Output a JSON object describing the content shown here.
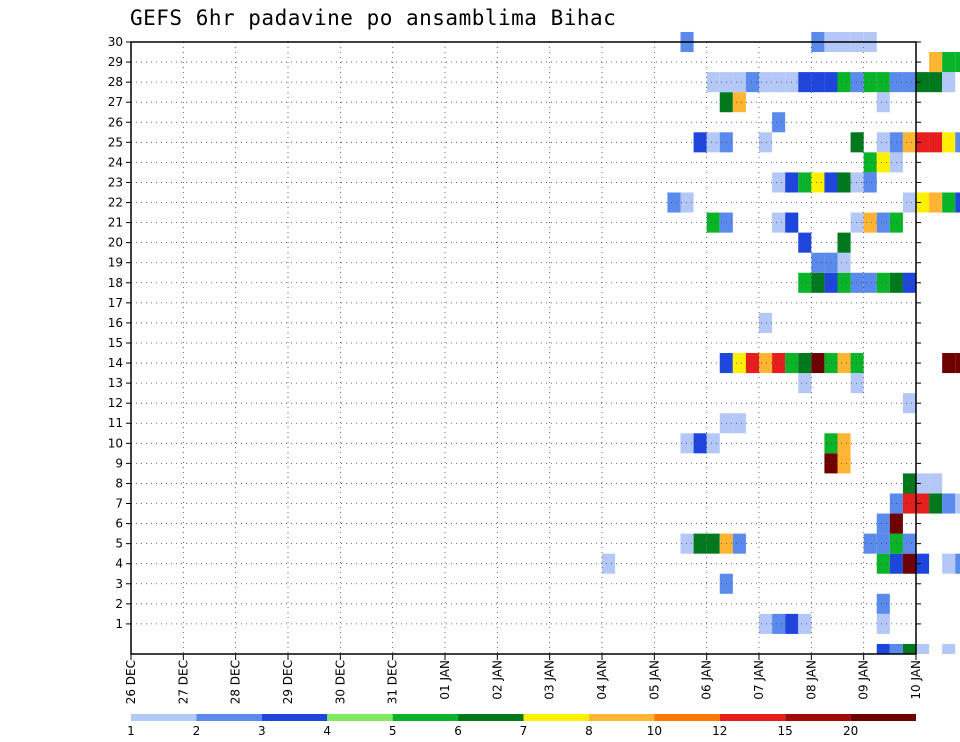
{
  "chart_data": {
    "type": "heatmap",
    "title": "GEFS 6hr padavine po ansamblima Bihac",
    "x_tick_labels": [
      "26 DEC",
      "27 DEC",
      "28 DEC",
      "29 DEC",
      "30 DEC",
      "31 DEC",
      "01 JAN",
      "02 JAN",
      "03 JAN",
      "04 JAN",
      "05 JAN",
      "06 JAN",
      "07 JAN",
      "08 JAN",
      "09 JAN",
      "10 JAN"
    ],
    "y_tick_labels": [
      "1",
      "2",
      "3",
      "4",
      "5",
      "6",
      "7",
      "8",
      "9",
      "10",
      "11",
      "12",
      "13",
      "14",
      "15",
      "16",
      "17",
      "18",
      "19",
      "20",
      "21",
      "22",
      "23",
      "24",
      "25",
      "26",
      "27",
      "28",
      "29",
      "30"
    ],
    "x_step": "6hr",
    "legend_labels": [
      "1",
      "2",
      "3",
      "4",
      "5",
      "6",
      "7",
      "8",
      "10",
      "12",
      "15",
      "20"
    ],
    "legend_colors": [
      "#b4c8f8",
      "#5a8aec",
      "#1e46dc",
      "#7ee860",
      "#0ab428",
      "#00781e",
      "#fff000",
      "#ffb432",
      "#ff7800",
      "#e61e1e",
      "#a00a0a",
      "#6e0000"
    ],
    "grid": true,
    "legend_position": "bottom",
    "cells": [
      [
        1,
        48,
        1
      ],
      [
        1,
        49,
        2
      ],
      [
        1,
        50,
        3
      ],
      [
        1,
        51,
        1
      ],
      [
        1,
        57,
        1
      ],
      [
        1,
        71,
        1
      ],
      [
        1,
        72,
        2
      ],
      [
        1,
        73,
        3
      ],
      [
        1,
        74,
        1
      ],
      [
        1,
        79,
        5
      ],
      [
        1,
        80,
        1
      ],
      [
        2,
        57,
        2
      ],
      [
        2,
        64,
        1
      ],
      [
        2,
        65,
        1
      ],
      [
        2,
        66,
        2
      ],
      [
        2,
        67,
        3
      ],
      [
        2,
        71,
        2
      ],
      [
        2,
        72,
        3
      ],
      [
        2,
        73,
        2
      ],
      [
        3,
        45,
        2
      ],
      [
        3,
        73,
        5
      ],
      [
        4,
        36,
        1
      ],
      [
        4,
        57,
        5
      ],
      [
        4,
        58,
        3
      ],
      [
        4,
        59,
        12
      ],
      [
        4,
        60,
        3
      ],
      [
        4,
        62,
        1
      ],
      [
        4,
        63,
        2
      ],
      [
        4,
        80,
        1
      ],
      [
        5,
        42,
        1
      ],
      [
        5,
        43,
        6
      ],
      [
        5,
        44,
        6
      ],
      [
        5,
        45,
        8
      ],
      [
        5,
        46,
        2
      ],
      [
        5,
        56,
        2
      ],
      [
        5,
        57,
        2
      ],
      [
        5,
        58,
        5
      ],
      [
        5,
        59,
        2
      ],
      [
        6,
        57,
        2
      ],
      [
        6,
        58,
        12
      ],
      [
        6,
        65,
        6
      ],
      [
        6,
        66,
        6
      ],
      [
        6,
        67,
        1
      ],
      [
        6,
        75,
        2
      ],
      [
        6,
        76,
        3
      ],
      [
        6,
        77,
        1
      ],
      [
        7,
        58,
        2
      ],
      [
        7,
        59,
        10
      ],
      [
        7,
        60,
        10
      ],
      [
        7,
        61,
        6
      ],
      [
        7,
        62,
        2
      ],
      [
        7,
        63,
        1
      ],
      [
        7,
        67,
        3
      ],
      [
        7,
        68,
        5
      ],
      [
        8,
        59,
        6
      ],
      [
        8,
        60,
        1
      ],
      [
        8,
        61,
        1
      ],
      [
        8,
        70,
        2
      ],
      [
        8,
        72,
        8
      ],
      [
        8,
        73,
        1
      ],
      [
        8,
        74,
        5
      ],
      [
        8,
        75,
        6
      ],
      [
        8,
        78,
        2
      ],
      [
        8,
        79,
        2
      ],
      [
        8,
        80,
        1
      ],
      [
        9,
        53,
        12
      ],
      [
        9,
        54,
        8
      ],
      [
        9,
        74,
        7
      ],
      [
        9,
        75,
        1
      ],
      [
        9,
        76,
        3
      ],
      [
        9,
        77,
        5
      ],
      [
        9,
        81,
        3
      ],
      [
        9,
        82,
        3
      ],
      [
        9,
        83,
        1
      ],
      [
        10,
        42,
        1
      ],
      [
        10,
        43,
        3
      ],
      [
        10,
        44,
        1
      ],
      [
        10,
        53,
        5
      ],
      [
        10,
        54,
        8
      ],
      [
        11,
        45,
        1
      ],
      [
        11,
        46,
        1
      ],
      [
        11,
        70,
        2
      ],
      [
        11,
        71,
        8
      ],
      [
        11,
        73,
        1
      ],
      [
        11,
        74,
        5
      ],
      [
        11,
        75,
        1
      ],
      [
        11,
        76,
        5
      ],
      [
        12,
        59,
        1
      ],
      [
        12,
        80,
        1
      ],
      [
        13,
        51,
        1
      ],
      [
        13,
        55,
        1
      ],
      [
        13,
        70,
        1
      ],
      [
        13,
        73,
        1
      ],
      [
        13,
        77,
        3
      ],
      [
        13,
        81,
        3
      ],
      [
        14,
        45,
        3
      ],
      [
        14,
        46,
        7
      ],
      [
        14,
        47,
        10
      ],
      [
        14,
        48,
        8
      ],
      [
        14,
        49,
        10
      ],
      [
        14,
        50,
        5
      ],
      [
        14,
        51,
        6
      ],
      [
        14,
        52,
        12
      ],
      [
        14,
        53,
        5
      ],
      [
        14,
        54,
        8
      ],
      [
        14,
        55,
        5
      ],
      [
        14,
        62,
        12
      ],
      [
        14,
        63,
        12
      ],
      [
        14,
        64,
        12
      ],
      [
        14,
        65,
        8
      ],
      [
        14,
        66,
        5
      ],
      [
        16,
        48,
        1
      ],
      [
        17,
        64,
        1
      ],
      [
        17,
        68,
        3
      ],
      [
        17,
        78,
        1
      ],
      [
        17,
        79,
        2
      ],
      [
        18,
        51,
        5
      ],
      [
        18,
        52,
        6
      ],
      [
        18,
        53,
        3
      ],
      [
        18,
        54,
        5
      ],
      [
        18,
        55,
        2
      ],
      [
        18,
        56,
        2
      ],
      [
        18,
        57,
        5
      ],
      [
        18,
        58,
        6
      ],
      [
        18,
        59,
        3
      ],
      [
        19,
        52,
        2
      ],
      [
        19,
        53,
        2
      ],
      [
        19,
        54,
        1
      ],
      [
        19,
        77,
        2
      ],
      [
        20,
        51,
        3
      ],
      [
        20,
        54,
        6
      ],
      [
        20,
        80,
        1
      ],
      [
        21,
        44,
        5
      ],
      [
        21,
        45,
        2
      ],
      [
        21,
        49,
        1
      ],
      [
        21,
        50,
        3
      ],
      [
        21,
        55,
        1
      ],
      [
        21,
        56,
        8
      ],
      [
        21,
        57,
        2
      ],
      [
        21,
        58,
        5
      ],
      [
        21,
        76,
        1
      ],
      [
        21,
        77,
        6
      ],
      [
        22,
        41,
        2
      ],
      [
        22,
        42,
        1
      ],
      [
        22,
        59,
        1
      ],
      [
        22,
        60,
        7
      ],
      [
        22,
        61,
        8
      ],
      [
        22,
        62,
        5
      ],
      [
        22,
        63,
        3
      ],
      [
        22,
        74,
        8
      ],
      [
        22,
        75,
        7
      ],
      [
        22,
        80,
        5
      ],
      [
        23,
        49,
        1
      ],
      [
        23,
        50,
        3
      ],
      [
        23,
        51,
        5
      ],
      [
        23,
        52,
        7
      ],
      [
        23,
        53,
        3
      ],
      [
        23,
        54,
        6
      ],
      [
        23,
        55,
        1
      ],
      [
        23,
        56,
        2
      ],
      [
        23,
        75,
        3
      ],
      [
        23,
        76,
        1
      ],
      [
        24,
        56,
        5
      ],
      [
        24,
        57,
        7
      ],
      [
        24,
        58,
        1
      ],
      [
        24,
        71,
        1
      ],
      [
        24,
        72,
        1
      ],
      [
        24,
        73,
        2
      ],
      [
        25,
        43,
        3
      ],
      [
        25,
        44,
        1
      ],
      [
        25,
        45,
        2
      ],
      [
        25,
        48,
        1
      ],
      [
        25,
        55,
        6
      ],
      [
        25,
        57,
        1
      ],
      [
        25,
        58,
        2
      ],
      [
        25,
        59,
        8
      ],
      [
        25,
        60,
        10
      ],
      [
        25,
        61,
        10
      ],
      [
        25,
        62,
        7
      ],
      [
        25,
        63,
        2
      ],
      [
        25,
        64,
        1
      ],
      [
        25,
        65,
        1
      ],
      [
        26,
        49,
        2
      ],
      [
        27,
        45,
        6
      ],
      [
        27,
        46,
        8
      ],
      [
        27,
        57,
        1
      ],
      [
        27,
        76,
        1
      ],
      [
        27,
        77,
        8
      ],
      [
        27,
        78,
        2
      ],
      [
        27,
        79,
        1
      ],
      [
        27,
        81,
        7
      ],
      [
        27,
        82,
        6
      ],
      [
        27,
        83,
        1
      ],
      [
        28,
        44,
        1
      ],
      [
        28,
        45,
        1
      ],
      [
        28,
        46,
        1
      ],
      [
        28,
        47,
        2
      ],
      [
        28,
        48,
        1
      ],
      [
        28,
        49,
        1
      ],
      [
        28,
        50,
        1
      ],
      [
        28,
        51,
        3
      ],
      [
        28,
        52,
        3
      ],
      [
        28,
        53,
        3
      ],
      [
        28,
        54,
        5
      ],
      [
        28,
        55,
        2
      ],
      [
        28,
        56,
        5
      ],
      [
        28,
        57,
        5
      ],
      [
        28,
        58,
        2
      ],
      [
        28,
        59,
        2
      ],
      [
        28,
        60,
        6
      ],
      [
        28,
        61,
        6
      ],
      [
        28,
        62,
        1
      ],
      [
        29,
        61,
        8
      ],
      [
        29,
        62,
        5
      ],
      [
        29,
        63,
        5
      ],
      [
        29,
        64,
        2
      ],
      [
        29,
        65,
        2
      ],
      [
        29,
        66,
        2
      ],
      [
        29,
        67,
        5
      ],
      [
        29,
        68,
        2
      ],
      [
        29,
        69,
        6
      ],
      [
        29,
        70,
        1
      ],
      [
        29,
        72,
        1
      ],
      [
        29,
        73,
        3
      ],
      [
        29,
        74,
        1
      ],
      [
        29,
        75,
        1
      ],
      [
        30,
        42,
        2
      ],
      [
        30,
        52,
        2
      ],
      [
        30,
        53,
        1
      ],
      [
        30,
        54,
        1
      ],
      [
        30,
        55,
        1
      ],
      [
        30,
        56,
        1
      ],
      [
        30,
        76,
        1
      ],
      [
        30,
        77,
        6
      ],
      [
        30,
        79,
        1
      ],
      [
        30,
        80,
        1
      ],
      [
        0,
        57,
        3
      ],
      [
        0,
        58,
        2
      ],
      [
        0,
        59,
        6
      ],
      [
        0,
        60,
        1
      ],
      [
        0,
        62,
        1
      ],
      [
        0,
        67,
        1
      ],
      [
        0,
        68,
        1
      ],
      [
        0,
        69,
        1
      ],
      [
        0,
        70,
        1
      ],
      [
        0,
        77,
        5
      ],
      [
        0,
        78,
        6
      ],
      [
        0,
        82,
        2
      ]
    ]
  }
}
